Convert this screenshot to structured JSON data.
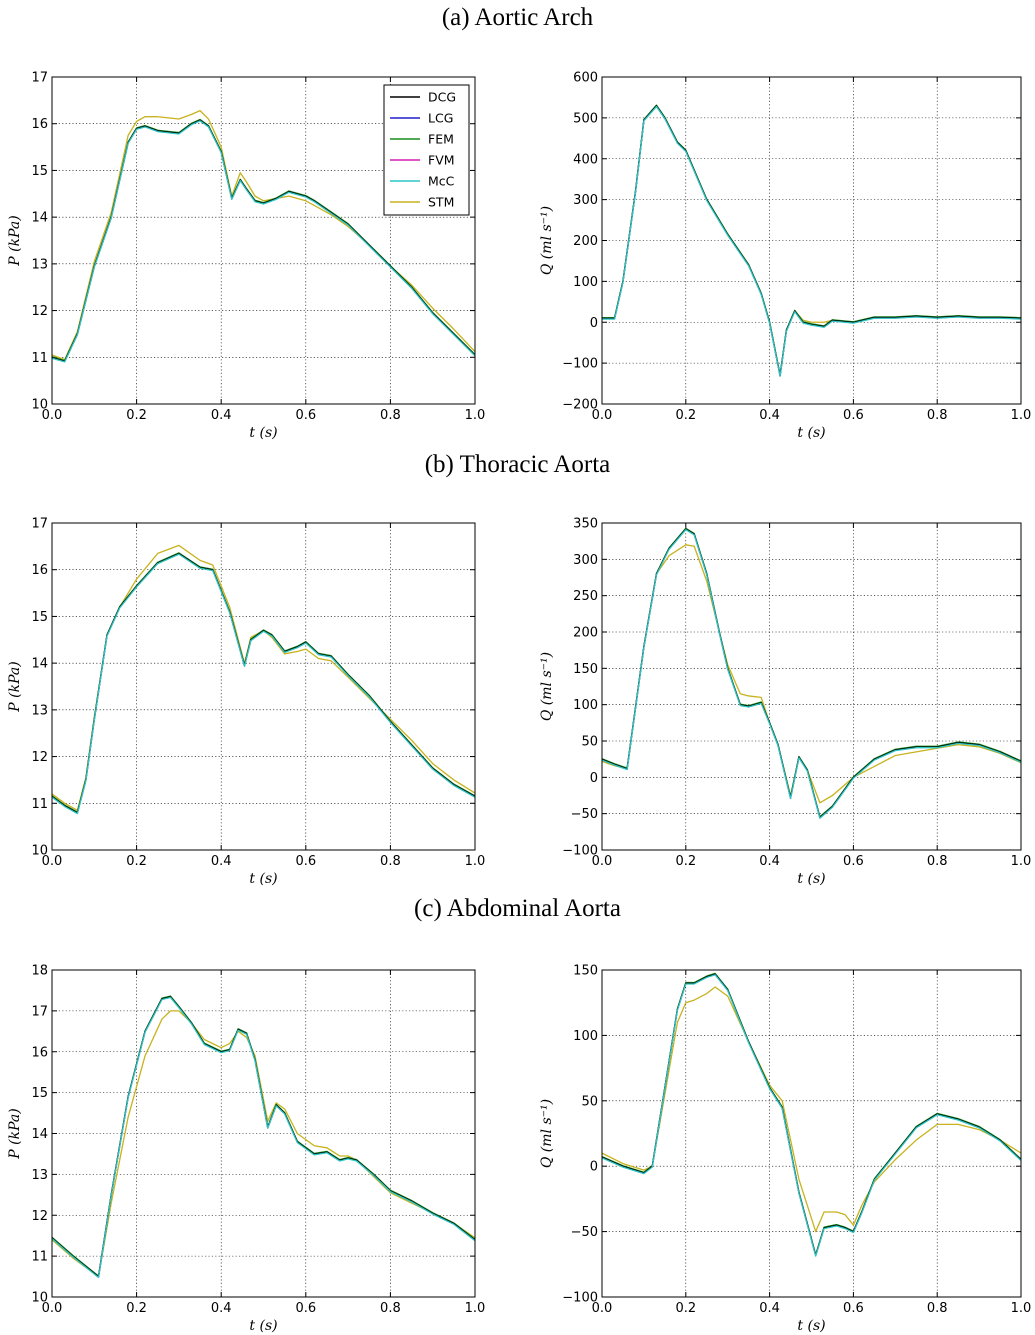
{
  "sections": [
    {
      "label": "(a) Aortic Arch"
    },
    {
      "label": "(b) Thoracic Aorta"
    },
    {
      "label": "(c) Abdominal Aorta"
    }
  ],
  "legend": {
    "entries": [
      {
        "name": "DCG",
        "color": "#000000"
      },
      {
        "name": "LCG",
        "color": "#1f1fc8"
      },
      {
        "name": "FEM",
        "color": "#1a8c1a"
      },
      {
        "name": "FVM",
        "color": "#d61fb0"
      },
      {
        "name": "McC",
        "color": "#2cc5c5"
      },
      {
        "name": "STM",
        "color": "#c8b21e"
      }
    ]
  },
  "chart_data": [
    {
      "type": "line",
      "section": "(a) Aortic Arch",
      "xlabel": "t (s)",
      "ylabel": "P (kPa)",
      "xlim": [
        0,
        1
      ],
      "ylim": [
        10,
        17
      ],
      "xticks": [
        "0.0",
        "0.2",
        "0.4",
        "0.6",
        "0.8",
        "1.0"
      ],
      "yticks": [
        "10",
        "11",
        "12",
        "13",
        "14",
        "15",
        "16",
        "17"
      ],
      "grid": true,
      "legend": "top-right",
      "x": [
        0,
        0.03,
        0.06,
        0.1,
        0.14,
        0.18,
        0.2,
        0.22,
        0.25,
        0.3,
        0.33,
        0.35,
        0.37,
        0.4,
        0.425,
        0.445,
        0.46,
        0.48,
        0.5,
        0.53,
        0.56,
        0.6,
        0.62,
        0.66,
        0.7,
        0.75,
        0.8,
        0.85,
        0.9,
        0.95,
        1.0
      ],
      "series": [
        {
          "name": "DCG",
          "values": [
            11.0,
            10.92,
            11.5,
            12.95,
            14.0,
            15.6,
            15.9,
            15.95,
            15.85,
            15.8,
            16.0,
            16.08,
            15.95,
            15.4,
            14.4,
            14.8,
            14.6,
            14.35,
            14.3,
            14.4,
            14.55,
            14.45,
            14.35,
            14.1,
            13.85,
            13.4,
            12.95,
            12.5,
            11.95,
            11.5,
            11.05
          ]
        },
        {
          "name": "STM",
          "values": [
            11.05,
            10.95,
            11.55,
            13.05,
            14.1,
            15.75,
            16.05,
            16.15,
            16.15,
            16.1,
            16.2,
            16.28,
            16.1,
            15.5,
            14.45,
            14.95,
            14.75,
            14.45,
            14.35,
            14.4,
            14.45,
            14.35,
            14.25,
            14.05,
            13.8,
            13.4,
            12.95,
            12.55,
            12.05,
            11.6,
            11.12
          ]
        }
      ]
    },
    {
      "type": "line",
      "section": "(a) Aortic Arch",
      "xlabel": "t (s)",
      "ylabel": "Q (ml s⁻¹)",
      "xlim": [
        0,
        1
      ],
      "ylim": [
        -200,
        600
      ],
      "xticks": [
        "0.0",
        "0.2",
        "0.4",
        "0.6",
        "0.8",
        "1.0"
      ],
      "yticks": [
        "−200",
        "−100",
        "0",
        "100",
        "200",
        "300",
        "400",
        "500",
        "600"
      ],
      "grid": true,
      "x": [
        0,
        0.03,
        0.05,
        0.08,
        0.1,
        0.13,
        0.15,
        0.18,
        0.2,
        0.25,
        0.3,
        0.35,
        0.38,
        0.4,
        0.425,
        0.44,
        0.46,
        0.48,
        0.5,
        0.53,
        0.55,
        0.6,
        0.65,
        0.7,
        0.75,
        0.8,
        0.85,
        0.9,
        0.95,
        1.0
      ],
      "series": [
        {
          "name": "DCG",
          "values": [
            10,
            10,
            100,
            320,
            495,
            530,
            500,
            440,
            420,
            300,
            215,
            140,
            70,
            0,
            -130,
            -20,
            28,
            0,
            -5,
            -10,
            5,
            0,
            12,
            12,
            15,
            12,
            15,
            12,
            12,
            10
          ]
        },
        {
          "name": "STM",
          "values": [
            10,
            10,
            100,
            320,
            495,
            530,
            500,
            440,
            420,
            300,
            215,
            140,
            70,
            0,
            -130,
            -20,
            28,
            5,
            0,
            0,
            5,
            0,
            12,
            12,
            15,
            12,
            15,
            12,
            12,
            10
          ]
        }
      ]
    },
    {
      "type": "line",
      "section": "(b) Thoracic Aorta",
      "xlabel": "t (s)",
      "ylabel": "P (kPa)",
      "xlim": [
        0,
        1
      ],
      "ylim": [
        10,
        17
      ],
      "xticks": [
        "0.0",
        "0.2",
        "0.4",
        "0.6",
        "0.8",
        "1.0"
      ],
      "yticks": [
        "10",
        "11",
        "12",
        "13",
        "14",
        "15",
        "16",
        "17"
      ],
      "grid": true,
      "x": [
        0,
        0.03,
        0.06,
        0.08,
        0.1,
        0.13,
        0.16,
        0.2,
        0.25,
        0.3,
        0.35,
        0.38,
        0.42,
        0.455,
        0.47,
        0.5,
        0.52,
        0.55,
        0.58,
        0.6,
        0.63,
        0.66,
        0.7,
        0.75,
        0.8,
        0.85,
        0.9,
        0.95,
        1.0
      ],
      "series": [
        {
          "name": "DCG",
          "values": [
            11.15,
            10.95,
            10.8,
            11.5,
            12.8,
            14.6,
            15.2,
            15.65,
            16.15,
            16.35,
            16.05,
            16.0,
            15.1,
            13.95,
            14.5,
            14.7,
            14.6,
            14.25,
            14.35,
            14.45,
            14.2,
            14.15,
            13.75,
            13.3,
            12.75,
            12.25,
            11.75,
            11.4,
            11.15
          ]
        },
        {
          "name": "STM",
          "values": [
            11.2,
            11.0,
            10.85,
            11.55,
            12.85,
            14.6,
            15.2,
            15.8,
            16.35,
            16.52,
            16.2,
            16.1,
            15.2,
            14.0,
            14.55,
            14.7,
            14.55,
            14.2,
            14.25,
            14.3,
            14.1,
            14.05,
            13.7,
            13.25,
            12.8,
            12.35,
            11.85,
            11.5,
            11.22
          ]
        }
      ]
    },
    {
      "type": "line",
      "section": "(b) Thoracic Aorta",
      "xlabel": "t (s)",
      "ylabel": "Q (ml s⁻¹)",
      "xlim": [
        0,
        1
      ],
      "ylim": [
        -100,
        350
      ],
      "xticks": [
        "0.0",
        "0.2",
        "0.4",
        "0.6",
        "0.8",
        "1.0"
      ],
      "yticks": [
        "−100",
        "−50",
        "0",
        "50",
        "100",
        "150",
        "200",
        "250",
        "300",
        "350"
      ],
      "grid": true,
      "x": [
        0,
        0.03,
        0.06,
        0.1,
        0.13,
        0.16,
        0.2,
        0.22,
        0.25,
        0.28,
        0.3,
        0.33,
        0.35,
        0.38,
        0.4,
        0.42,
        0.45,
        0.47,
        0.49,
        0.52,
        0.55,
        0.6,
        0.65,
        0.7,
        0.75,
        0.8,
        0.85,
        0.9,
        0.95,
        1.0
      ],
      "series": [
        {
          "name": "DCG",
          "values": [
            25,
            18,
            12,
            180,
            280,
            315,
            342,
            335,
            280,
            200,
            150,
            100,
            98,
            103,
            75,
            45,
            -28,
            28,
            10,
            -55,
            -40,
            0,
            25,
            38,
            42,
            42,
            48,
            45,
            35,
            22
          ]
        },
        {
          "name": "STM",
          "values": [
            22,
            16,
            12,
            180,
            280,
            305,
            320,
            318,
            270,
            200,
            155,
            115,
            112,
            110,
            75,
            45,
            -25,
            28,
            10,
            -35,
            -25,
            0,
            15,
            30,
            35,
            40,
            45,
            42,
            33,
            20
          ]
        }
      ]
    },
    {
      "type": "line",
      "section": "(c) Abdominal Aorta",
      "xlabel": "t (s)",
      "ylabel": "P (kPa)",
      "xlim": [
        0,
        1
      ],
      "ylim": [
        10,
        18
      ],
      "xticks": [
        "0.0",
        "0.2",
        "0.4",
        "0.6",
        "0.8",
        "1.0"
      ],
      "yticks": [
        "10",
        "11",
        "12",
        "13",
        "14",
        "15",
        "16",
        "17",
        "18"
      ],
      "grid": true,
      "x": [
        0,
        0.05,
        0.11,
        0.14,
        0.18,
        0.22,
        0.26,
        0.28,
        0.3,
        0.33,
        0.36,
        0.4,
        0.42,
        0.44,
        0.46,
        0.48,
        0.51,
        0.53,
        0.55,
        0.58,
        0.62,
        0.65,
        0.68,
        0.7,
        0.72,
        0.76,
        0.8,
        0.85,
        0.9,
        0.95,
        1.0
      ],
      "series": [
        {
          "name": "DCG",
          "values": [
            11.45,
            11.0,
            10.5,
            12.5,
            14.9,
            16.5,
            17.3,
            17.35,
            17.1,
            16.7,
            16.2,
            16.0,
            16.05,
            16.55,
            16.45,
            15.8,
            14.15,
            14.7,
            14.5,
            13.8,
            13.5,
            13.55,
            13.35,
            13.4,
            13.35,
            13.0,
            12.6,
            12.35,
            12.05,
            11.8,
            11.4
          ]
        },
        {
          "name": "STM",
          "values": [
            11.4,
            10.95,
            10.5,
            12.3,
            14.4,
            15.9,
            16.8,
            17.0,
            17.0,
            16.7,
            16.3,
            16.1,
            16.2,
            16.5,
            16.35,
            15.9,
            14.3,
            14.75,
            14.6,
            14.0,
            13.7,
            13.65,
            13.45,
            13.45,
            13.35,
            12.95,
            12.55,
            12.3,
            12.05,
            11.8,
            11.45
          ]
        }
      ]
    },
    {
      "type": "line",
      "section": "(c) Abdominal Aorta",
      "xlabel": "t (s)",
      "ylabel": "Q (ml s⁻¹)",
      "xlim": [
        0,
        1
      ],
      "ylim": [
        -100,
        150
      ],
      "xticks": [
        "0.0",
        "0.2",
        "0.4",
        "0.6",
        "0.8",
        "1.0"
      ],
      "yticks": [
        "−100",
        "−50",
        "0",
        "50",
        "100",
        "150"
      ],
      "grid": true,
      "x": [
        0,
        0.05,
        0.1,
        0.12,
        0.15,
        0.18,
        0.2,
        0.22,
        0.25,
        0.27,
        0.3,
        0.35,
        0.4,
        0.43,
        0.47,
        0.51,
        0.53,
        0.56,
        0.58,
        0.6,
        0.62,
        0.65,
        0.7,
        0.75,
        0.8,
        0.85,
        0.9,
        0.95,
        1.0
      ],
      "series": [
        {
          "name": "DCG",
          "values": [
            7,
            0,
            -5,
            0,
            60,
            120,
            140,
            140,
            145,
            147,
            135,
            95,
            60,
            45,
            -20,
            -68,
            -47,
            -45,
            -47,
            -50,
            -35,
            -10,
            10,
            30,
            40,
            36,
            30,
            20,
            5
          ]
        },
        {
          "name": "STM",
          "values": [
            10,
            2,
            -3,
            0,
            55,
            110,
            125,
            127,
            132,
            137,
            130,
            95,
            62,
            50,
            -10,
            -50,
            -35,
            -35,
            -37,
            -45,
            -30,
            -12,
            5,
            20,
            32,
            32,
            28,
            20,
            10
          ]
        }
      ]
    }
  ]
}
